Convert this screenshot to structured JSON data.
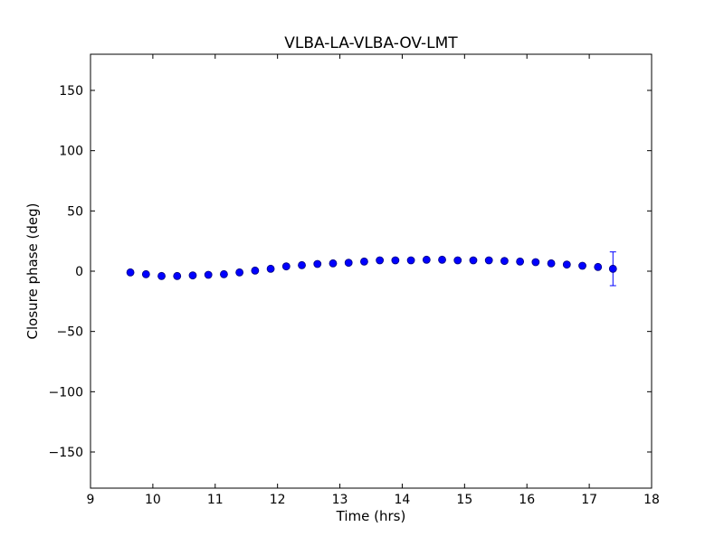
{
  "chart_data": {
    "type": "scatter",
    "title": "VLBA-LA-VLBA-OV-LMT",
    "xlabel": "Time (hrs)",
    "ylabel": "Closure phase (deg)",
    "xlim": [
      9,
      18
    ],
    "ylim": [
      -180,
      180
    ],
    "xticks": [
      9,
      10,
      11,
      12,
      13,
      14,
      15,
      16,
      17,
      18
    ],
    "xtick_labels": [
      "9",
      "10",
      "11",
      "12",
      "13",
      "14",
      "15",
      "16",
      "17",
      "18"
    ],
    "yticks": [
      150,
      100,
      50,
      0,
      -50,
      -100,
      -150
    ],
    "ytick_labels": [
      "150",
      "100",
      "50",
      "0",
      "−50",
      "−100",
      "−150"
    ],
    "grid": false,
    "marker_color": "#0000ff",
    "marker_edge_color": "#000080",
    "errorbar_color": "#0000ff",
    "series": [
      {
        "x": [
          9.64,
          9.89,
          10.14,
          10.39,
          10.64,
          10.89,
          11.14,
          11.39,
          11.64,
          11.89,
          12.14,
          12.39,
          12.64,
          12.89,
          13.14,
          13.39,
          13.64,
          13.89,
          14.14,
          14.39,
          14.64,
          14.89,
          15.14,
          15.39,
          15.64,
          15.89,
          16.14,
          16.39,
          16.64,
          16.89,
          17.14,
          17.38
        ],
        "y": [
          -1,
          -2.5,
          -4,
          -4,
          -3.5,
          -3,
          -2.5,
          -1,
          0.5,
          2,
          4,
          5,
          6,
          6.5,
          7,
          8,
          9,
          9,
          9,
          9.5,
          9.5,
          9,
          9,
          9,
          8.5,
          8,
          7.5,
          6.5,
          5.5,
          4.5,
          3.5,
          2
        ],
        "yerr": [
          0.5,
          0.5,
          0.5,
          0.5,
          0.5,
          0.5,
          0.5,
          0.5,
          0.5,
          0.5,
          0.5,
          0.5,
          0.5,
          0.5,
          0.5,
          0.5,
          0.5,
          0.5,
          0.5,
          0.5,
          0.5,
          0.5,
          0.5,
          0.5,
          0.5,
          0.5,
          0.5,
          0.5,
          0.5,
          0.8,
          1,
          14
        ]
      }
    ]
  }
}
